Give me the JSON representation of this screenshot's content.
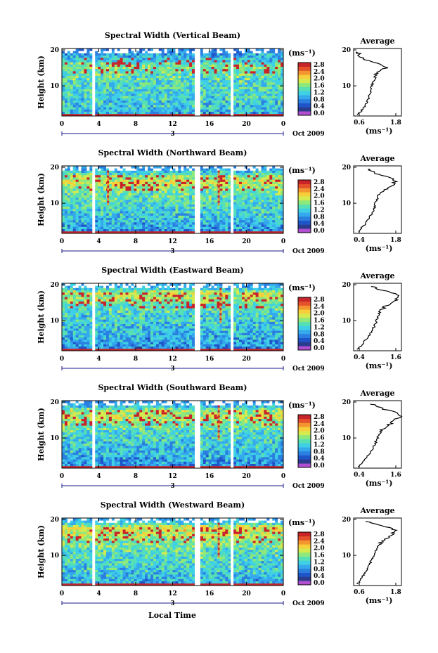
{
  "figure": {
    "xlabel": "Local Time",
    "x_ticks": [
      "0",
      "4",
      "8",
      "12",
      "16",
      "20",
      "0"
    ],
    "day_label": "3",
    "date_label": "Oct 2009",
    "ylabel": "Height (km)",
    "y_ticks": [
      "20",
      "10"
    ],
    "colorbar_unit": "(ms⁻¹)",
    "colorbar_ticks": [
      "2.8",
      "2.4",
      "2.0",
      "1.6",
      "1.2",
      "0.8",
      "0.4",
      "0.0"
    ],
    "avg_title": "Average",
    "avg_unit": "(ms⁻¹)",
    "colors": {
      "colormap": [
        "#2b3c8f",
        "#1f55c8",
        "#2a7fe0",
        "#34a9ec",
        "#3fd0e6",
        "#57e0b4",
        "#8fe87a",
        "#d5ea4f",
        "#f6cf3a",
        "#f3962f",
        "#e4512b",
        "#c8242a"
      ],
      "below_min": "#b04fd0",
      "gap": "#ffffff"
    }
  },
  "chart_data": [
    {
      "type": "heatmap",
      "title": "Spectral Width (Vertical Beam)",
      "x_range_hours": [
        0,
        24
      ],
      "y_range_km": [
        2,
        20
      ],
      "value_range": [
        0,
        3.0
      ],
      "data_gaps_hours": [
        [
          3.2,
          3.6
        ],
        [
          14.5,
          14.9
        ],
        [
          18.2,
          18.5
        ]
      ],
      "vertical_enhancement_hours": [],
      "avg_profile": {
        "xlim": [
          0.6,
          1.8
        ],
        "x_ticks": [
          "0.6",
          "1.8"
        ],
        "height_km": [
          2,
          3,
          4,
          5,
          6,
          7,
          8,
          9,
          10,
          11,
          12,
          13,
          14,
          15,
          16,
          17,
          18,
          19,
          19.5
        ],
        "width": [
          0.7,
          0.78,
          0.86,
          0.92,
          0.96,
          0.99,
          1.02,
          1.04,
          1.06,
          1.08,
          1.12,
          1.16,
          1.24,
          1.42,
          1.28,
          0.96,
          0.8,
          0.72,
          0.68
        ]
      }
    },
    {
      "type": "heatmap",
      "title": "Spectral Width (Northward Beam)",
      "x_range_hours": [
        0,
        24
      ],
      "y_range_km": [
        2,
        20
      ],
      "value_range": [
        0,
        3.0
      ],
      "data_gaps_hours": [
        [
          3.2,
          3.6
        ],
        [
          14.5,
          14.9
        ],
        [
          18.2,
          18.5
        ]
      ],
      "vertical_enhancement_hours": [
        5.0,
        17.0
      ],
      "avg_profile": {
        "xlim": [
          0.4,
          1.8
        ],
        "x_ticks": [
          "0.4",
          "1.8"
        ],
        "height_km": [
          2,
          3,
          4,
          5,
          6,
          7,
          8,
          9,
          10,
          11,
          12,
          13,
          14,
          15,
          16,
          17,
          18,
          19,
          19.5
        ],
        "width": [
          0.55,
          0.62,
          0.72,
          0.8,
          0.86,
          0.92,
          0.98,
          1.02,
          1.04,
          1.08,
          1.12,
          1.22,
          1.38,
          1.52,
          1.62,
          1.48,
          1.12,
          0.9,
          0.82
        ]
      }
    },
    {
      "type": "heatmap",
      "title": "Spectral Width (Eastward Beam)",
      "x_range_hours": [
        0,
        24
      ],
      "y_range_km": [
        2,
        20
      ],
      "value_range": [
        0,
        3.0
      ],
      "data_gaps_hours": [
        [
          3.2,
          3.6
        ],
        [
          14.5,
          14.9
        ],
        [
          18.2,
          18.5
        ]
      ],
      "vertical_enhancement_hours": [
        17.2
      ],
      "avg_profile": {
        "xlim": [
          0.4,
          1.6
        ],
        "x_ticks": [
          "0.4",
          "1.6"
        ],
        "height_km": [
          2,
          3,
          4,
          5,
          6,
          7,
          8,
          9,
          10,
          11,
          12,
          13,
          14,
          15,
          16,
          17,
          18,
          19,
          19.5
        ],
        "width": [
          0.5,
          0.58,
          0.66,
          0.74,
          0.8,
          0.86,
          0.9,
          0.94,
          0.98,
          1.0,
          1.04,
          1.1,
          1.2,
          1.36,
          1.48,
          1.56,
          1.3,
          0.96,
          0.84
        ]
      }
    },
    {
      "type": "heatmap",
      "title": "Spectral Width (Southward Beam)",
      "x_range_hours": [
        0,
        24
      ],
      "y_range_km": [
        2,
        20
      ],
      "value_range": [
        0,
        3.0
      ],
      "data_gaps_hours": [
        [
          3.2,
          3.6
        ],
        [
          14.5,
          14.9
        ],
        [
          18.2,
          18.5
        ]
      ],
      "vertical_enhancement_hours": [
        17.0
      ],
      "avg_profile": {
        "xlim": [
          0.4,
          1.6
        ],
        "x_ticks": [
          "0.4",
          "1.6"
        ],
        "height_km": [
          2,
          3,
          4,
          5,
          6,
          7,
          8,
          9,
          10,
          11,
          12,
          13,
          14,
          15,
          16,
          17,
          18,
          19,
          19.5
        ],
        "width": [
          0.52,
          0.6,
          0.68,
          0.76,
          0.82,
          0.88,
          0.92,
          0.96,
          1.0,
          1.04,
          1.1,
          1.2,
          1.32,
          1.44,
          1.56,
          1.5,
          1.18,
          0.92,
          0.84
        ]
      }
    },
    {
      "type": "heatmap",
      "title": "Spectral Width (Westward Beam)",
      "x_range_hours": [
        0,
        24
      ],
      "y_range_km": [
        2,
        20
      ],
      "value_range": [
        0,
        3.0
      ],
      "data_gaps_hours": [
        [
          3.2,
          3.6
        ],
        [
          14.5,
          14.9
        ],
        [
          18.2,
          18.5
        ]
      ],
      "vertical_enhancement_hours": [
        17.0
      ],
      "avg_profile": {
        "xlim": [
          0.6,
          1.8
        ],
        "x_ticks": [
          "0.6",
          "1.8"
        ],
        "height_km": [
          2,
          3,
          4,
          5,
          6,
          7,
          8,
          9,
          10,
          11,
          12,
          13,
          14,
          15,
          16,
          17,
          18,
          19,
          19.5
        ],
        "width": [
          0.7,
          0.76,
          0.82,
          0.88,
          0.94,
          0.98,
          1.02,
          1.06,
          1.1,
          1.14,
          1.18,
          1.24,
          1.34,
          1.46,
          1.58,
          1.66,
          1.4,
          1.06,
          0.9
        ]
      }
    }
  ]
}
